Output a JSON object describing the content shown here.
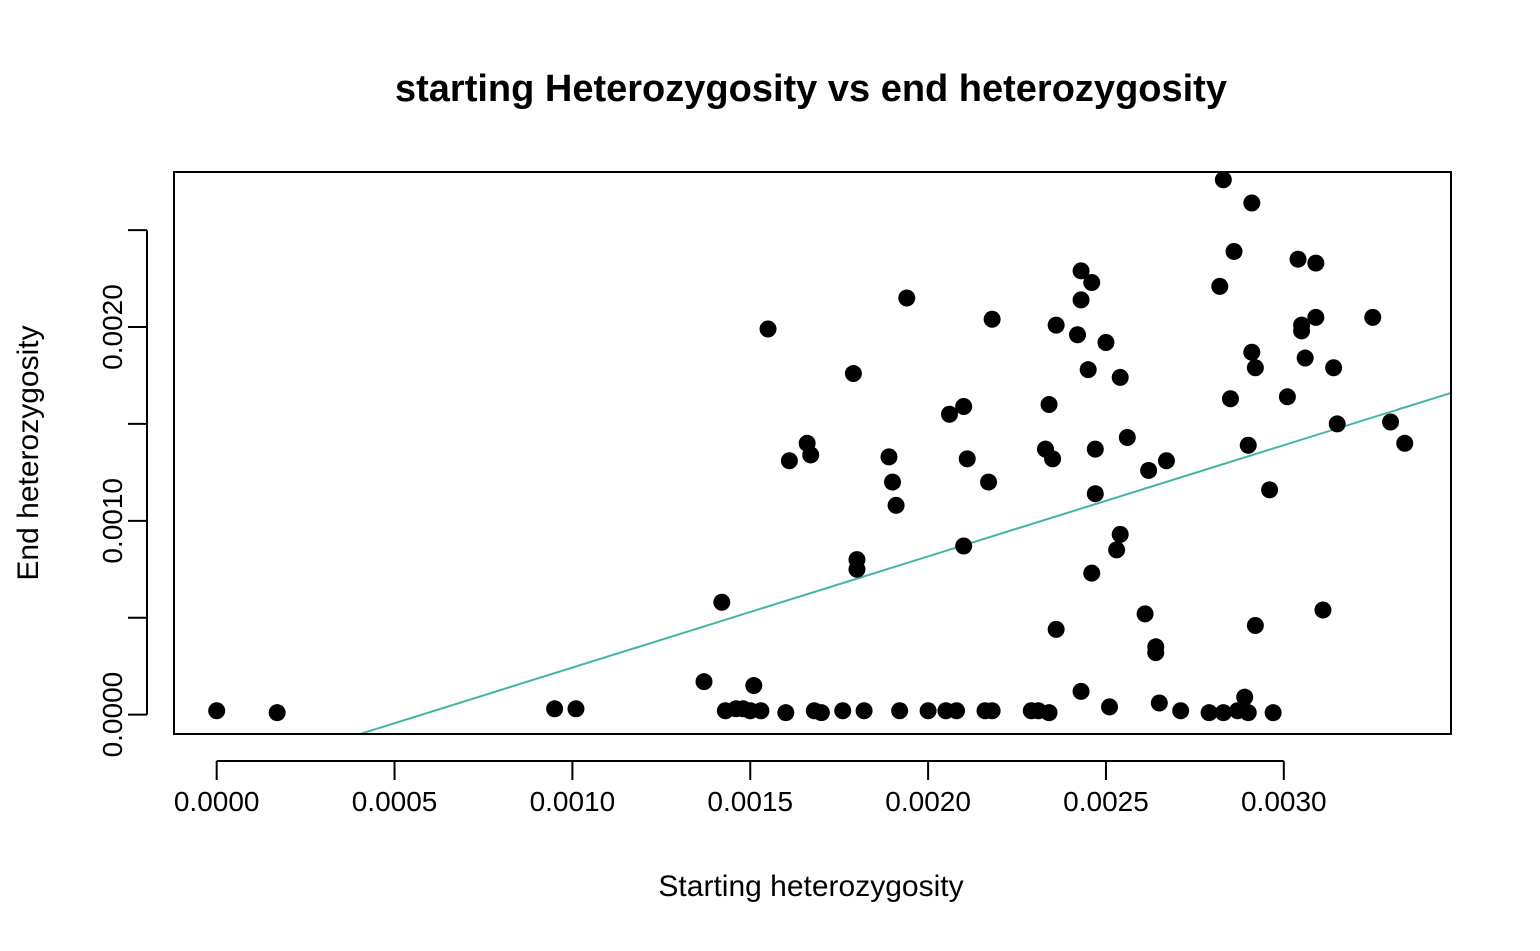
{
  "chart_data": {
    "type": "scatter",
    "title": "starting Heterozygosity vs end heterozygosity",
    "xlabel": "Starting heterozygosity",
    "ylabel": "End heterozygosity",
    "xlim": [
      -0.00012,
      0.00347
    ],
    "ylim": [
      -0.0001,
      0.0028
    ],
    "x_ticks": [
      "0.0000",
      "0.0005",
      "0.0010",
      "0.0015",
      "0.0020",
      "0.0025",
      "0.0030"
    ],
    "y_ticks": [
      "0.0000",
      "0.0010",
      "0.0020"
    ],
    "y_minor_ticks": [
      0.0005,
      0.0015,
      0.0025
    ],
    "grid": false,
    "legend": "none",
    "point_color": "#000000",
    "trend_color": "#45b3a6",
    "trend_line": {
      "x": [
        -0.00012,
        0.00347
      ],
      "y": [
        -0.0004,
        0.00166
      ]
    },
    "points": [
      [
        0.0,
        2e-05
      ],
      [
        0.00017,
        1e-05
      ],
      [
        0.00095,
        3e-05
      ],
      [
        0.00101,
        3e-05
      ],
      [
        0.00137,
        0.00017
      ],
      [
        0.00142,
        0.00058
      ],
      [
        0.00143,
        2e-05
      ],
      [
        0.00146,
        3e-05
      ],
      [
        0.00148,
        3e-05
      ],
      [
        0.0015,
        2e-05
      ],
      [
        0.00151,
        0.00015
      ],
      [
        0.00153,
        2e-05
      ],
      [
        0.00155,
        0.00199
      ],
      [
        0.0016,
        1e-05
      ],
      [
        0.00161,
        0.00131
      ],
      [
        0.00166,
        0.0014
      ],
      [
        0.00167,
        0.00134
      ],
      [
        0.00168,
        2e-05
      ],
      [
        0.0017,
        1e-05
      ],
      [
        0.00176,
        2e-05
      ],
      [
        0.00179,
        0.00176
      ],
      [
        0.0018,
        0.0008
      ],
      [
        0.0018,
        0.00075
      ],
      [
        0.00182,
        2e-05
      ],
      [
        0.00189,
        0.00133
      ],
      [
        0.0019,
        0.0012
      ],
      [
        0.00191,
        0.00108
      ],
      [
        0.00192,
        2e-05
      ],
      [
        0.00194,
        0.00215
      ],
      [
        0.002,
        2e-05
      ],
      [
        0.00205,
        2e-05
      ],
      [
        0.00206,
        0.00155
      ],
      [
        0.00208,
        2e-05
      ],
      [
        0.0021,
        0.00159
      ],
      [
        0.0021,
        0.00087
      ],
      [
        0.00211,
        0.00132
      ],
      [
        0.00216,
        2e-05
      ],
      [
        0.00217,
        0.0012
      ],
      [
        0.00218,
        2e-05
      ],
      [
        0.00218,
        0.00204
      ],
      [
        0.00229,
        2e-05
      ],
      [
        0.00231,
        2e-05
      ],
      [
        0.00233,
        0.00137
      ],
      [
        0.00234,
        1e-05
      ],
      [
        0.00234,
        0.0016
      ],
      [
        0.00235,
        0.00132
      ],
      [
        0.00236,
        0.00201
      ],
      [
        0.00236,
        0.00044
      ],
      [
        0.00242,
        0.00196
      ],
      [
        0.00243,
        0.00012
      ],
      [
        0.00243,
        0.00214
      ],
      [
        0.00243,
        0.00229
      ],
      [
        0.00245,
        0.00178
      ],
      [
        0.00246,
        0.00223
      ],
      [
        0.00246,
        0.00073
      ],
      [
        0.00247,
        0.00114
      ],
      [
        0.00247,
        0.00137
      ],
      [
        0.0025,
        0.00192
      ],
      [
        0.00251,
        4e-05
      ],
      [
        0.00253,
        0.00085
      ],
      [
        0.00254,
        0.00093
      ],
      [
        0.00254,
        0.00174
      ],
      [
        0.00256,
        0.00143
      ],
      [
        0.00261,
        0.00052
      ],
      [
        0.00262,
        0.00126
      ],
      [
        0.00264,
        0.00032
      ],
      [
        0.00264,
        0.00035
      ],
      [
        0.00265,
        6e-05
      ],
      [
        0.00267,
        0.00131
      ],
      [
        0.00271,
        2e-05
      ],
      [
        0.00279,
        1e-05
      ],
      [
        0.00282,
        0.00221
      ],
      [
        0.00283,
        0.00276
      ],
      [
        0.00283,
        1e-05
      ],
      [
        0.00285,
        0.00163
      ],
      [
        0.00286,
        0.00239
      ],
      [
        0.00287,
        2e-05
      ],
      [
        0.00289,
        9e-05
      ],
      [
        0.0029,
        1e-05
      ],
      [
        0.0029,
        0.00139
      ],
      [
        0.00291,
        0.00187
      ],
      [
        0.00291,
        0.00264
      ],
      [
        0.00292,
        0.00046
      ],
      [
        0.00292,
        0.00179
      ],
      [
        0.00296,
        0.00116
      ],
      [
        0.00297,
        1e-05
      ],
      [
        0.00301,
        0.00164
      ],
      [
        0.00304,
        0.00235
      ],
      [
        0.00305,
        0.00198
      ],
      [
        0.00305,
        0.00201
      ],
      [
        0.00306,
        0.00184
      ],
      [
        0.00309,
        0.00205
      ],
      [
        0.00309,
        0.00233
      ],
      [
        0.00311,
        0.00054
      ],
      [
        0.00314,
        0.00179
      ],
      [
        0.00315,
        0.0015
      ],
      [
        0.00325,
        0.00205
      ],
      [
        0.0033,
        0.00151
      ],
      [
        0.00334,
        0.0014
      ]
    ]
  }
}
